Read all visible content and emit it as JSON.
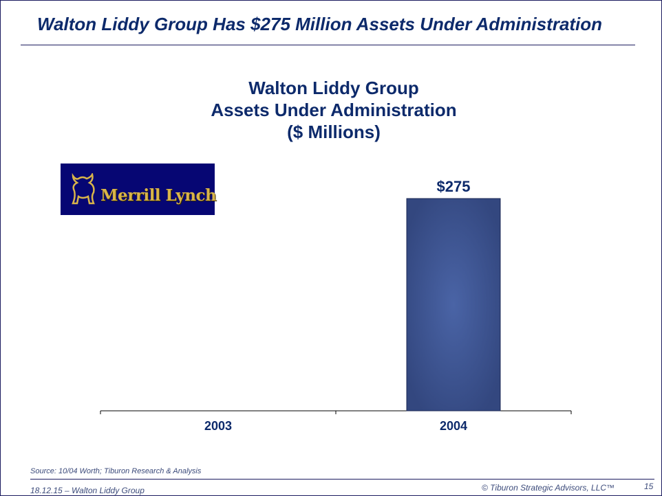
{
  "slide": {
    "title": "Walton Liddy Group Has $275 Million Assets Under Administration",
    "logo_text": "Merrill Lynch"
  },
  "chart_data": {
    "type": "bar",
    "title_lines": [
      "Walton Liddy Group",
      "Assets Under Administration",
      "($ Millions)"
    ],
    "categories": [
      "2003",
      "2004"
    ],
    "values": [
      null,
      275
    ],
    "data_labels": [
      "",
      "$275"
    ],
    "xlabel": "",
    "ylabel": "",
    "ylim": [
      0,
      275
    ],
    "grid": false,
    "bar_color": "#3d5596"
  },
  "footer": {
    "source": "Source:  10/04 Worth; Tiburon Research & Analysis",
    "left": "18.12.15 – Walton Liddy Group",
    "right": "© Tiburon Strategic Advisors, LLC™",
    "page": "15"
  }
}
